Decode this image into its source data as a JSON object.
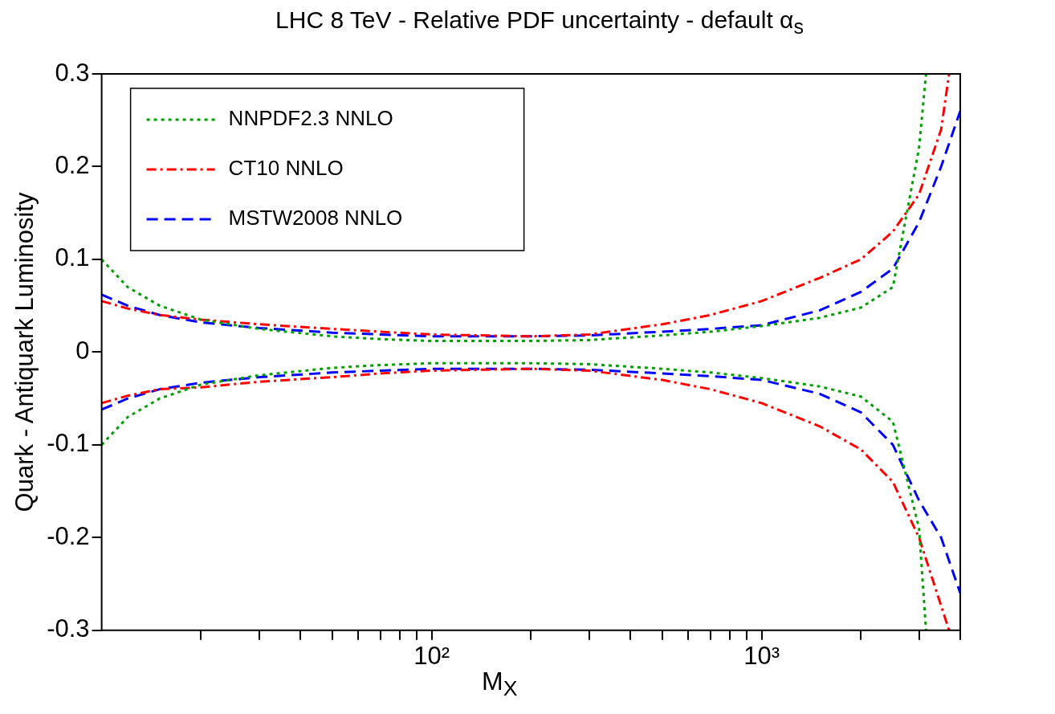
{
  "chart_data": {
    "type": "line",
    "title": "LHC 8 TeV - Relative PDF uncertainty - default α$_{s}$",
    "xlabel": "M$_{X}$",
    "ylabel": "Quark - Antiquark Luminosity",
    "log": "x",
    "legend": "top left",
    "grid": false,
    "marker": "none",
    "xlim": [
      10,
      4000
    ],
    "ylim": [
      -0.3,
      0.3
    ],
    "xticks": [
      {
        "value": 20,
        "label": null
      },
      {
        "value": 30,
        "label": null
      },
      {
        "value": 40,
        "label": null
      },
      {
        "value": 50,
        "label": null
      },
      {
        "value": 60,
        "label": null
      },
      {
        "value": 70,
        "label": null
      },
      {
        "value": 80,
        "label": null
      },
      {
        "value": 90,
        "label": null
      },
      {
        "value": 100,
        "label": "10²"
      },
      {
        "value": 200,
        "label": null
      },
      {
        "value": 300,
        "label": null
      },
      {
        "value": 400,
        "label": null
      },
      {
        "value": 500,
        "label": null
      },
      {
        "value": 600,
        "label": null
      },
      {
        "value": 700,
        "label": null
      },
      {
        "value": 800,
        "label": null
      },
      {
        "value": 900,
        "label": null
      },
      {
        "value": 1000,
        "label": "10³"
      },
      {
        "value": 2000,
        "label": null
      },
      {
        "value": 3000,
        "label": null
      },
      {
        "value": 4000,
        "label": null
      }
    ],
    "yticks": [
      -0.3,
      -0.2,
      -0.1,
      {
        "value": 0,
        "label": "0"
      },
      0.1,
      0.2,
      0.3
    ],
    "series": [
      {
        "name": "NNPDF2.3 NNLO",
        "color": "#00a000",
        "line_style": "dotted",
        "x": [
          10,
          12,
          15,
          20,
          30,
          50,
          70,
          100,
          200,
          300,
          500,
          700,
          1000,
          1500,
          2000,
          2500,
          3000,
          3150
        ],
        "values": [
          0.1,
          0.07,
          0.05,
          0.035,
          0.025,
          0.017,
          0.014,
          0.012,
          0.012,
          0.013,
          0.018,
          0.022,
          0.028,
          0.037,
          0.048,
          0.07,
          0.22,
          0.3
        ]
      },
      {
        "name": "CT10 NNLO",
        "color": "#ff0000",
        "line_style": "dashdot",
        "x": [
          10,
          12,
          15,
          20,
          30,
          50,
          70,
          100,
          200,
          300,
          500,
          700,
          1000,
          1500,
          2000,
          2500,
          3000,
          3500,
          3700
        ],
        "values": [
          0.055,
          0.047,
          0.04,
          0.035,
          0.03,
          0.025,
          0.022,
          0.019,
          0.017,
          0.019,
          0.03,
          0.04,
          0.055,
          0.08,
          0.1,
          0.13,
          0.17,
          0.24,
          0.3
        ]
      },
      {
        "name": "MSTW2008 NNLO",
        "color": "#0000ff",
        "line_style": "dashed",
        "x": [
          10,
          12,
          15,
          20,
          30,
          50,
          70,
          100,
          200,
          300,
          500,
          700,
          1000,
          1500,
          2000,
          2500,
          3000,
          3500,
          4000
        ],
        "values": [
          0.062,
          0.05,
          0.04,
          0.032,
          0.026,
          0.021,
          0.019,
          0.017,
          0.017,
          0.018,
          0.022,
          0.025,
          0.029,
          0.045,
          0.065,
          0.09,
          0.14,
          0.2,
          0.26
        ]
      },
      {
        "color": "#00a000",
        "line_style": "dotted",
        "x": [
          10,
          12,
          15,
          20,
          30,
          50,
          70,
          100,
          200,
          300,
          500,
          700,
          1000,
          1500,
          2000,
          2500,
          3000,
          3150
        ],
        "values": [
          -0.1,
          -0.07,
          -0.05,
          -0.035,
          -0.025,
          -0.017,
          -0.014,
          -0.012,
          -0.012,
          -0.013,
          -0.018,
          -0.022,
          -0.028,
          -0.037,
          -0.048,
          -0.075,
          -0.19,
          -0.3
        ]
      },
      {
        "color": "#ff0000",
        "line_style": "dashdot",
        "x": [
          10,
          12,
          15,
          20,
          30,
          50,
          70,
          100,
          200,
          300,
          500,
          700,
          1000,
          1500,
          2000,
          2500,
          3000,
          3700
        ],
        "values": [
          -0.055,
          -0.047,
          -0.04,
          -0.038,
          -0.032,
          -0.027,
          -0.023,
          -0.02,
          -0.018,
          -0.02,
          -0.03,
          -0.04,
          -0.055,
          -0.08,
          -0.105,
          -0.14,
          -0.2,
          -0.3
        ]
      },
      {
        "color": "#0000ff",
        "line_style": "dashed",
        "x": [
          10,
          12,
          15,
          20,
          30,
          50,
          70,
          100,
          200,
          300,
          500,
          700,
          1000,
          1500,
          2000,
          2500,
          3000,
          3500,
          4000
        ],
        "values": [
          -0.062,
          -0.05,
          -0.04,
          -0.033,
          -0.027,
          -0.022,
          -0.02,
          -0.018,
          -0.018,
          -0.019,
          -0.023,
          -0.026,
          -0.03,
          -0.045,
          -0.065,
          -0.1,
          -0.16,
          -0.2,
          -0.26
        ]
      }
    ]
  }
}
